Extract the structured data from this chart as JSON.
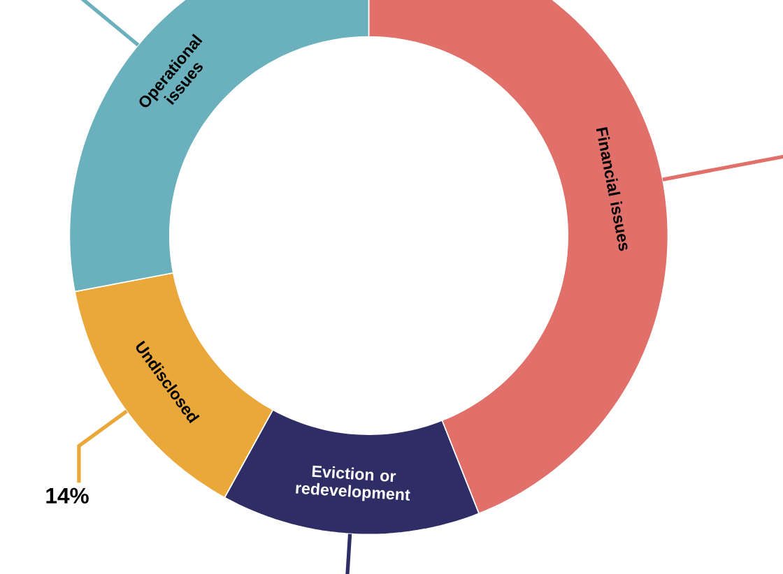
{
  "chart_data": {
    "type": "donut",
    "categories": [
      "Financial issues",
      "Eviction or redevelopment",
      "Undisclosed",
      "Operational issues"
    ],
    "values": [
      44,
      14,
      14,
      28
    ],
    "colors": [
      "#e07069",
      "#2e2d66",
      "#eba83a",
      "#6ab0bd"
    ],
    "value_labels": [
      null,
      null,
      "14%",
      null
    ]
  }
}
